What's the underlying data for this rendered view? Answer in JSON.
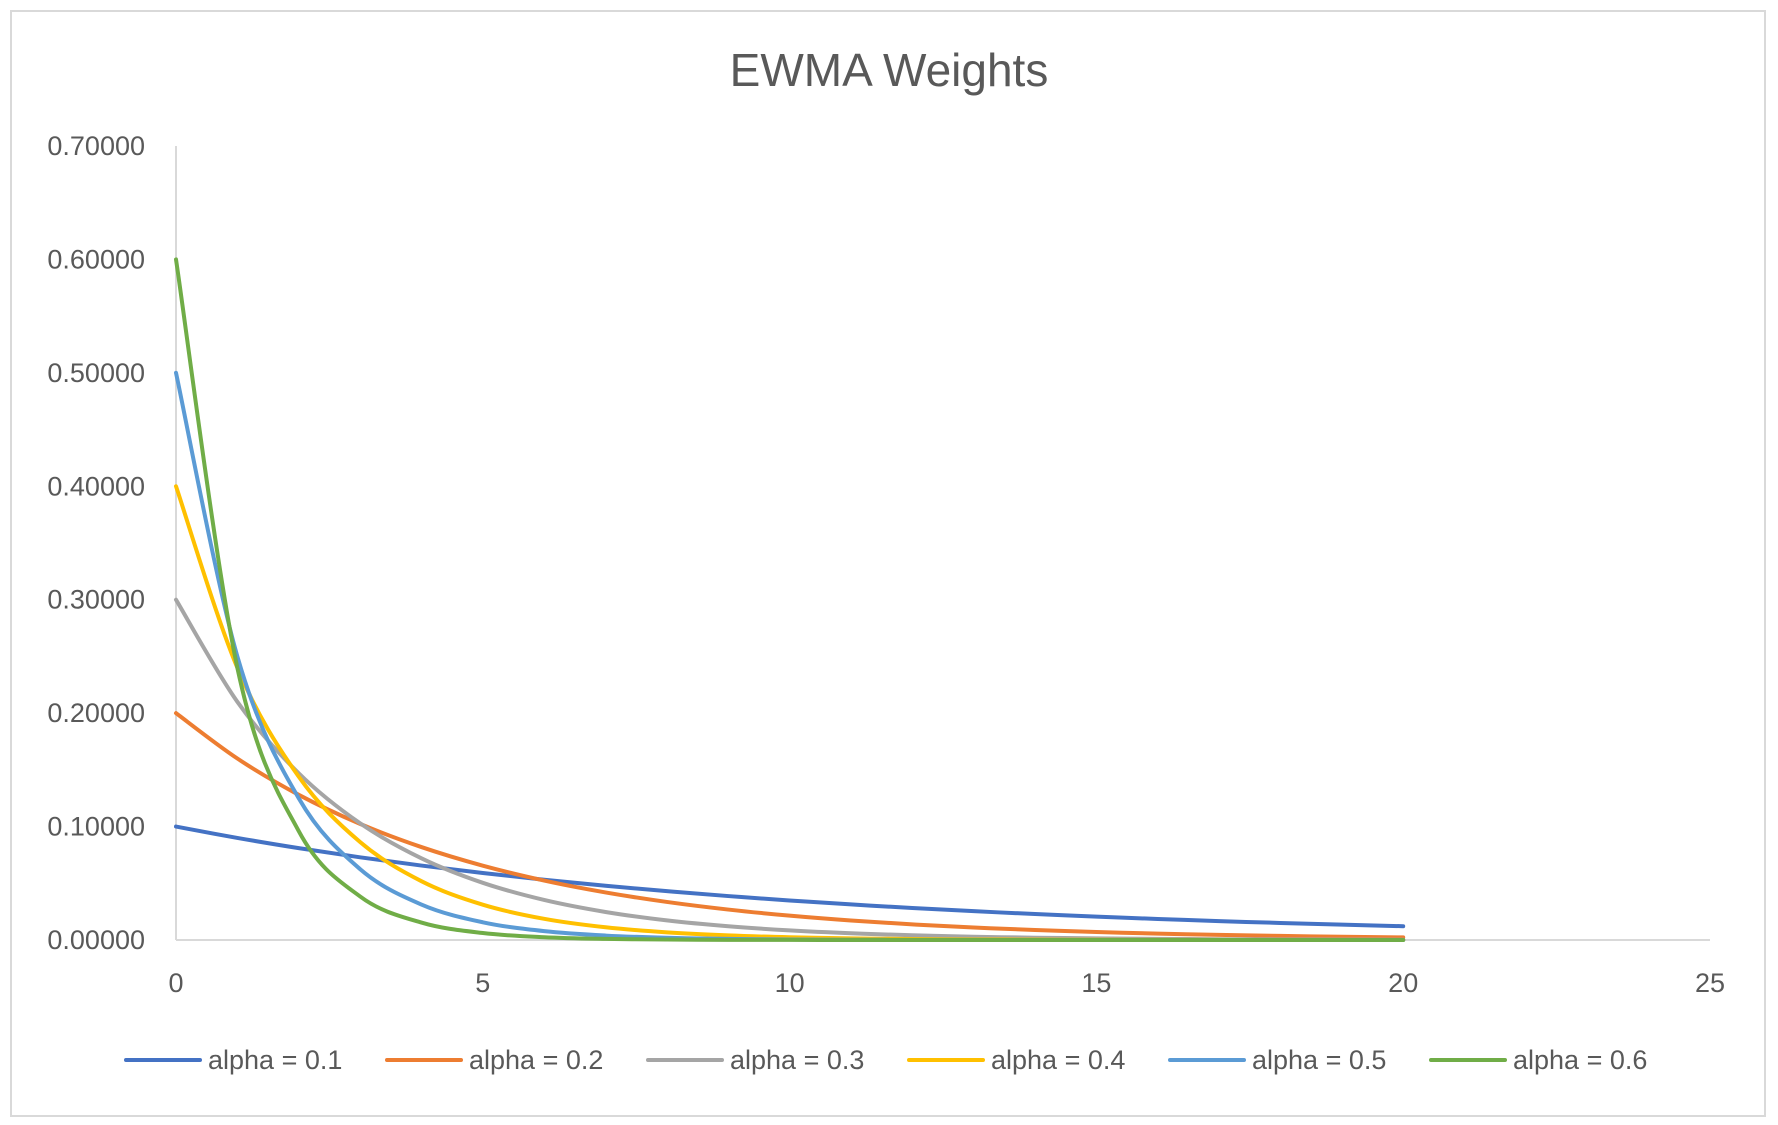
{
  "chart_data": {
    "type": "line",
    "title": "EWMA Weights",
    "xlabel": "",
    "ylabel": "",
    "xlim": [
      0,
      25
    ],
    "ylim": [
      0,
      0.7
    ],
    "x_ticks": [
      "0",
      "5",
      "10",
      "15",
      "20",
      "25"
    ],
    "y_ticks": [
      "0.00000",
      "0.10000",
      "0.20000",
      "0.30000",
      "0.40000",
      "0.50000",
      "0.60000",
      "0.70000"
    ],
    "grid": false,
    "legend_position": "bottom",
    "smooth": true,
    "x": [
      0,
      1,
      2,
      3,
      4,
      5,
      6,
      7,
      8,
      9,
      10,
      11,
      12,
      13,
      14,
      15,
      16,
      17,
      18,
      19,
      20
    ],
    "series": [
      {
        "name": "alpha = 0.1",
        "color": "#4472C4",
        "values": [
          0.1,
          0.09,
          0.081,
          0.0729,
          0.06561,
          0.05905,
          0.05314,
          0.04783,
          0.04305,
          0.03874,
          0.03487,
          0.03138,
          0.02824,
          0.02542,
          0.02288,
          0.02059,
          0.01853,
          0.01668,
          0.01501,
          0.01351,
          0.01216
        ]
      },
      {
        "name": "alpha = 0.2",
        "color": "#ED7D31",
        "values": [
          0.2,
          0.16,
          0.128,
          0.1024,
          0.08192,
          0.06554,
          0.05243,
          0.04194,
          0.03355,
          0.02684,
          0.02147,
          0.01718,
          0.01374,
          0.011,
          0.0088,
          0.00704,
          0.00563,
          0.0045,
          0.0036,
          0.00288,
          0.00231
        ]
      },
      {
        "name": "alpha = 0.3",
        "color": "#A5A5A5",
        "values": [
          0.3,
          0.21,
          0.147,
          0.1029,
          0.07203,
          0.05042,
          0.03529,
          0.02471,
          0.01729,
          0.01211,
          0.00847,
          0.00593,
          0.00415,
          0.00291,
          0.00203,
          0.00142,
          0.001,
          0.0007,
          0.00049,
          0.00034,
          0.00024
        ]
      },
      {
        "name": "alpha = 0.4",
        "color": "#FFC000",
        "values": [
          0.4,
          0.24,
          0.144,
          0.0864,
          0.05184,
          0.0311,
          0.01866,
          0.0112,
          0.00672,
          0.00403,
          0.00242,
          0.00145,
          0.00087,
          0.00052,
          0.00031,
          0.00019,
          0.00011,
          7e-05,
          4e-05,
          3e-05,
          2e-05
        ]
      },
      {
        "name": "alpha = 0.5",
        "color": "#5B9BD5",
        "values": [
          0.5,
          0.25,
          0.125,
          0.0625,
          0.03125,
          0.01563,
          0.00781,
          0.00391,
          0.00195,
          0.00098,
          0.00049,
          0.00024,
          0.00012,
          6e-05,
          3e-05,
          2e-05,
          1e-05,
          0,
          0,
          0,
          0
        ]
      },
      {
        "name": "alpha = 0.6",
        "color": "#70AD47",
        "values": [
          0.6,
          0.24,
          0.096,
          0.0384,
          0.01536,
          0.00614,
          0.00246,
          0.00098,
          0.00039,
          0.00016,
          6e-05,
          3e-05,
          1e-05,
          0,
          0,
          0,
          0,
          0,
          0,
          0,
          0
        ]
      }
    ]
  }
}
